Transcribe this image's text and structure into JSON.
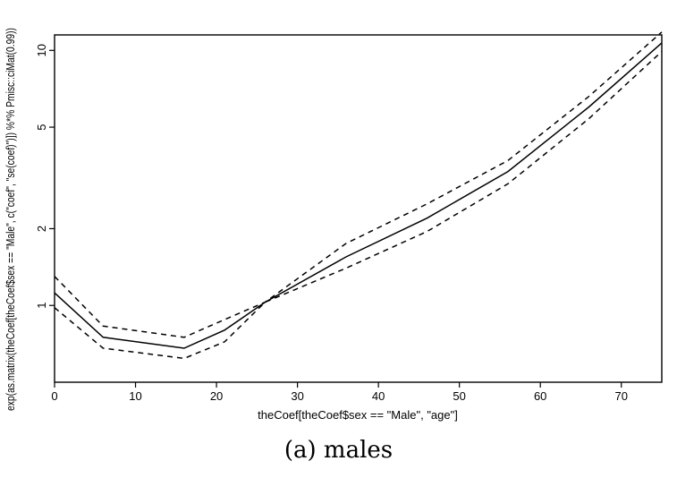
{
  "chart_data": {
    "type": "line",
    "title": "",
    "xlabel": "theCoef[theCoef$sex == \"Male\", \"age\"]",
    "ylabel": "exp(as.matrix(theCoef[theCoef$sex == \"Male\", c(\"coef\", \"se(coef)\")]) %*% Pmisc::ciMat(0.99))",
    "caption": "(a) males",
    "xlim": [
      0,
      75
    ],
    "ylim": [
      0.5,
      11.5
    ],
    "y_scale": "log",
    "grid": false,
    "x_ticks": [
      0,
      10,
      20,
      30,
      40,
      50,
      60,
      70
    ],
    "x_tick_labels": [
      "0",
      "10",
      "20",
      "30",
      "40",
      "50",
      "60",
      "70"
    ],
    "y_ticks": [
      1,
      2,
      5,
      10
    ],
    "y_tick_labels": [
      "1",
      "2",
      "5",
      "10"
    ],
    "x": [
      0,
      6,
      16,
      21,
      26,
      36,
      46,
      56,
      66,
      75
    ],
    "series": [
      {
        "line_style": "solid",
        "values": [
          1.12,
          0.75,
          0.68,
          0.8,
          1.03,
          1.55,
          2.2,
          3.35,
          6.0,
          10.7
        ]
      },
      {
        "line_style": "dashed",
        "values": [
          1.3,
          0.83,
          0.75,
          0.88,
          1.03,
          1.75,
          2.5,
          3.7,
          6.6,
          11.8
        ]
      },
      {
        "line_style": "dashed",
        "values": [
          0.98,
          0.68,
          0.62,
          0.72,
          1.03,
          1.4,
          1.95,
          3.0,
          5.4,
          9.9
        ]
      }
    ],
    "colors": {
      "line": "#000000",
      "axis": "#000000",
      "background": "#ffffff"
    }
  }
}
